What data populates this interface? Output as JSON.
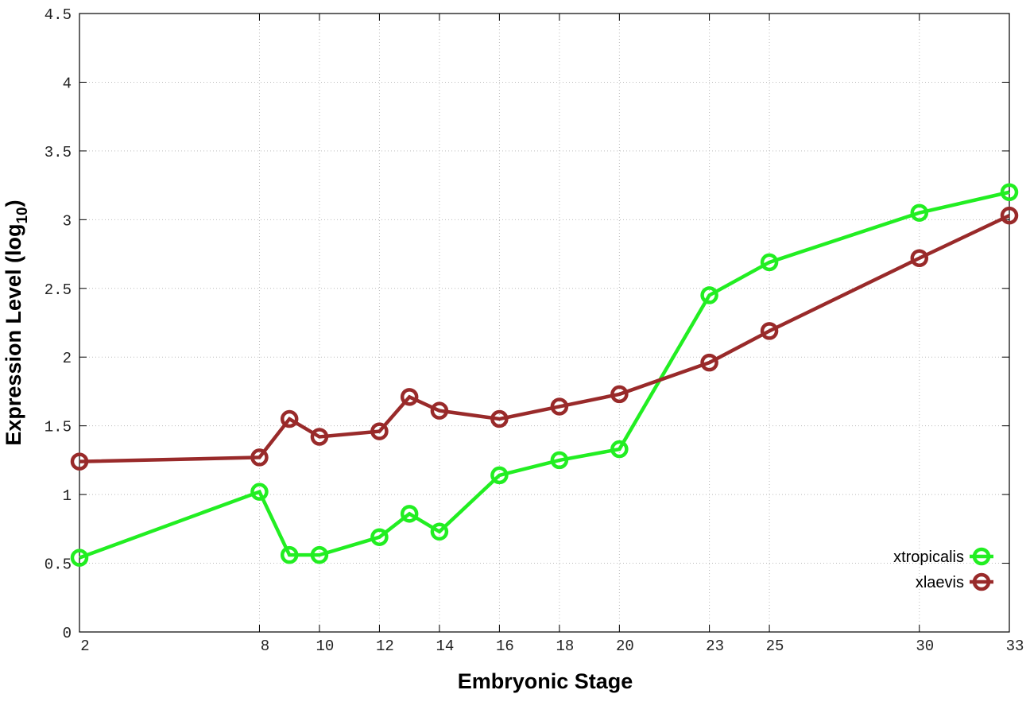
{
  "chart_data": {
    "type": "line",
    "xlabel": "Embryonic Stage",
    "ylabel": {
      "text": "Expression Level (log",
      "subscript": "10",
      "suffix": ")"
    },
    "x": [
      2,
      8,
      9,
      10,
      12,
      13,
      14,
      16,
      18,
      20,
      23,
      25,
      30,
      33
    ],
    "series": [
      {
        "name": "xtropicalis",
        "color": "#22ee22",
        "values": [
          0.54,
          1.02,
          0.56,
          0.56,
          0.69,
          0.86,
          0.73,
          1.14,
          1.25,
          1.33,
          2.45,
          2.69,
          3.05,
          3.2
        ]
      },
      {
        "name": "xlaevis",
        "color": "#992a2a",
        "values": [
          1.24,
          1.27,
          1.55,
          1.42,
          1.46,
          1.71,
          1.61,
          1.55,
          1.64,
          1.73,
          1.96,
          2.19,
          2.72,
          3.03
        ]
      }
    ],
    "xlim": [
      2,
      33
    ],
    "xticks": [
      2,
      8,
      10,
      12,
      14,
      16,
      18,
      20,
      23,
      25,
      30,
      33
    ],
    "ylim": [
      0,
      4.5
    ],
    "yticks": [
      0,
      0.5,
      1,
      1.5,
      2,
      2.5,
      3,
      3.5,
      4,
      4.5
    ],
    "grid": true,
    "legend": "lower right"
  }
}
